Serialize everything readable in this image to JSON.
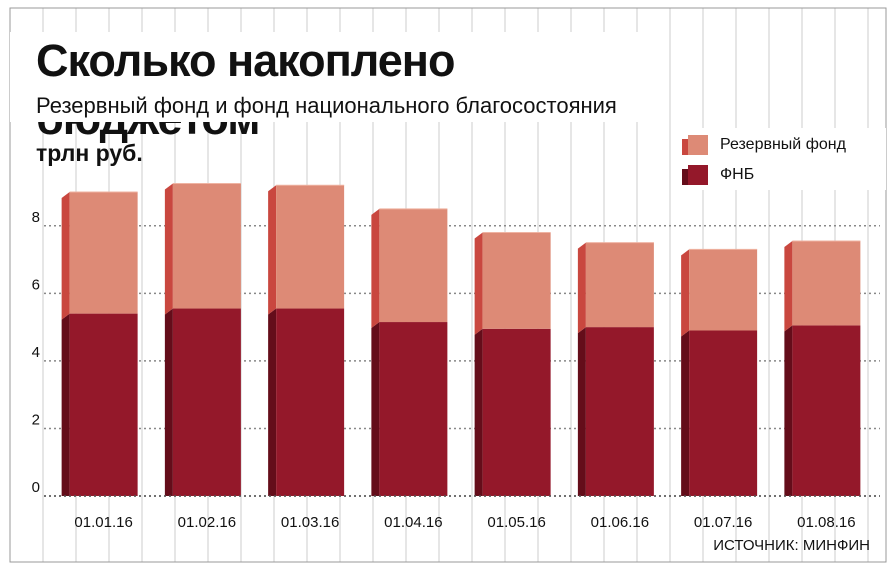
{
  "colors": {
    "reserve_face": "#dd8a76",
    "reserve_side": "#c9473f",
    "reserve_top": "#efb3a2",
    "nwf_face": "#94182a",
    "nwf_side": "#640d1a",
    "grid_major": "#888888",
    "grid_minor": "#cccccc"
  },
  "header": {
    "title": "Сколько накоплено бюджетом",
    "subtitle": "Резервный фонд и фонд национального благосостояния"
  },
  "unit_label": "трлн руб.",
  "source": "ИСТОЧНИК: МИНФИН",
  "chart_data": {
    "type": "bar",
    "stacked": true,
    "title": "Сколько накоплено бюджетом",
    "subtitle": "Резервный фонд и фонд национального благосостояния",
    "ylabel": "трлн руб.",
    "xlabel": "",
    "ylim": [
      0,
      9
    ],
    "yticks": [
      0,
      2,
      4,
      6,
      8
    ],
    "categories": [
      "01.01.16",
      "01.02.16",
      "01.03.16",
      "01.04.16",
      "01.05.16",
      "01.06.16",
      "01.07.16",
      "01.08.16"
    ],
    "series": [
      {
        "name": "ФНБ",
        "values": [
          5.4,
          5.55,
          5.55,
          5.15,
          4.95,
          5.0,
          4.9,
          5.05
        ]
      },
      {
        "name": "Резервный фонд",
        "values": [
          3.6,
          3.7,
          3.65,
          3.35,
          2.85,
          2.5,
          2.4,
          2.5
        ]
      }
    ],
    "legend": {
      "position": "top-right",
      "entries": [
        "Резервный фонд",
        "ФНБ"
      ]
    },
    "grid": true
  }
}
